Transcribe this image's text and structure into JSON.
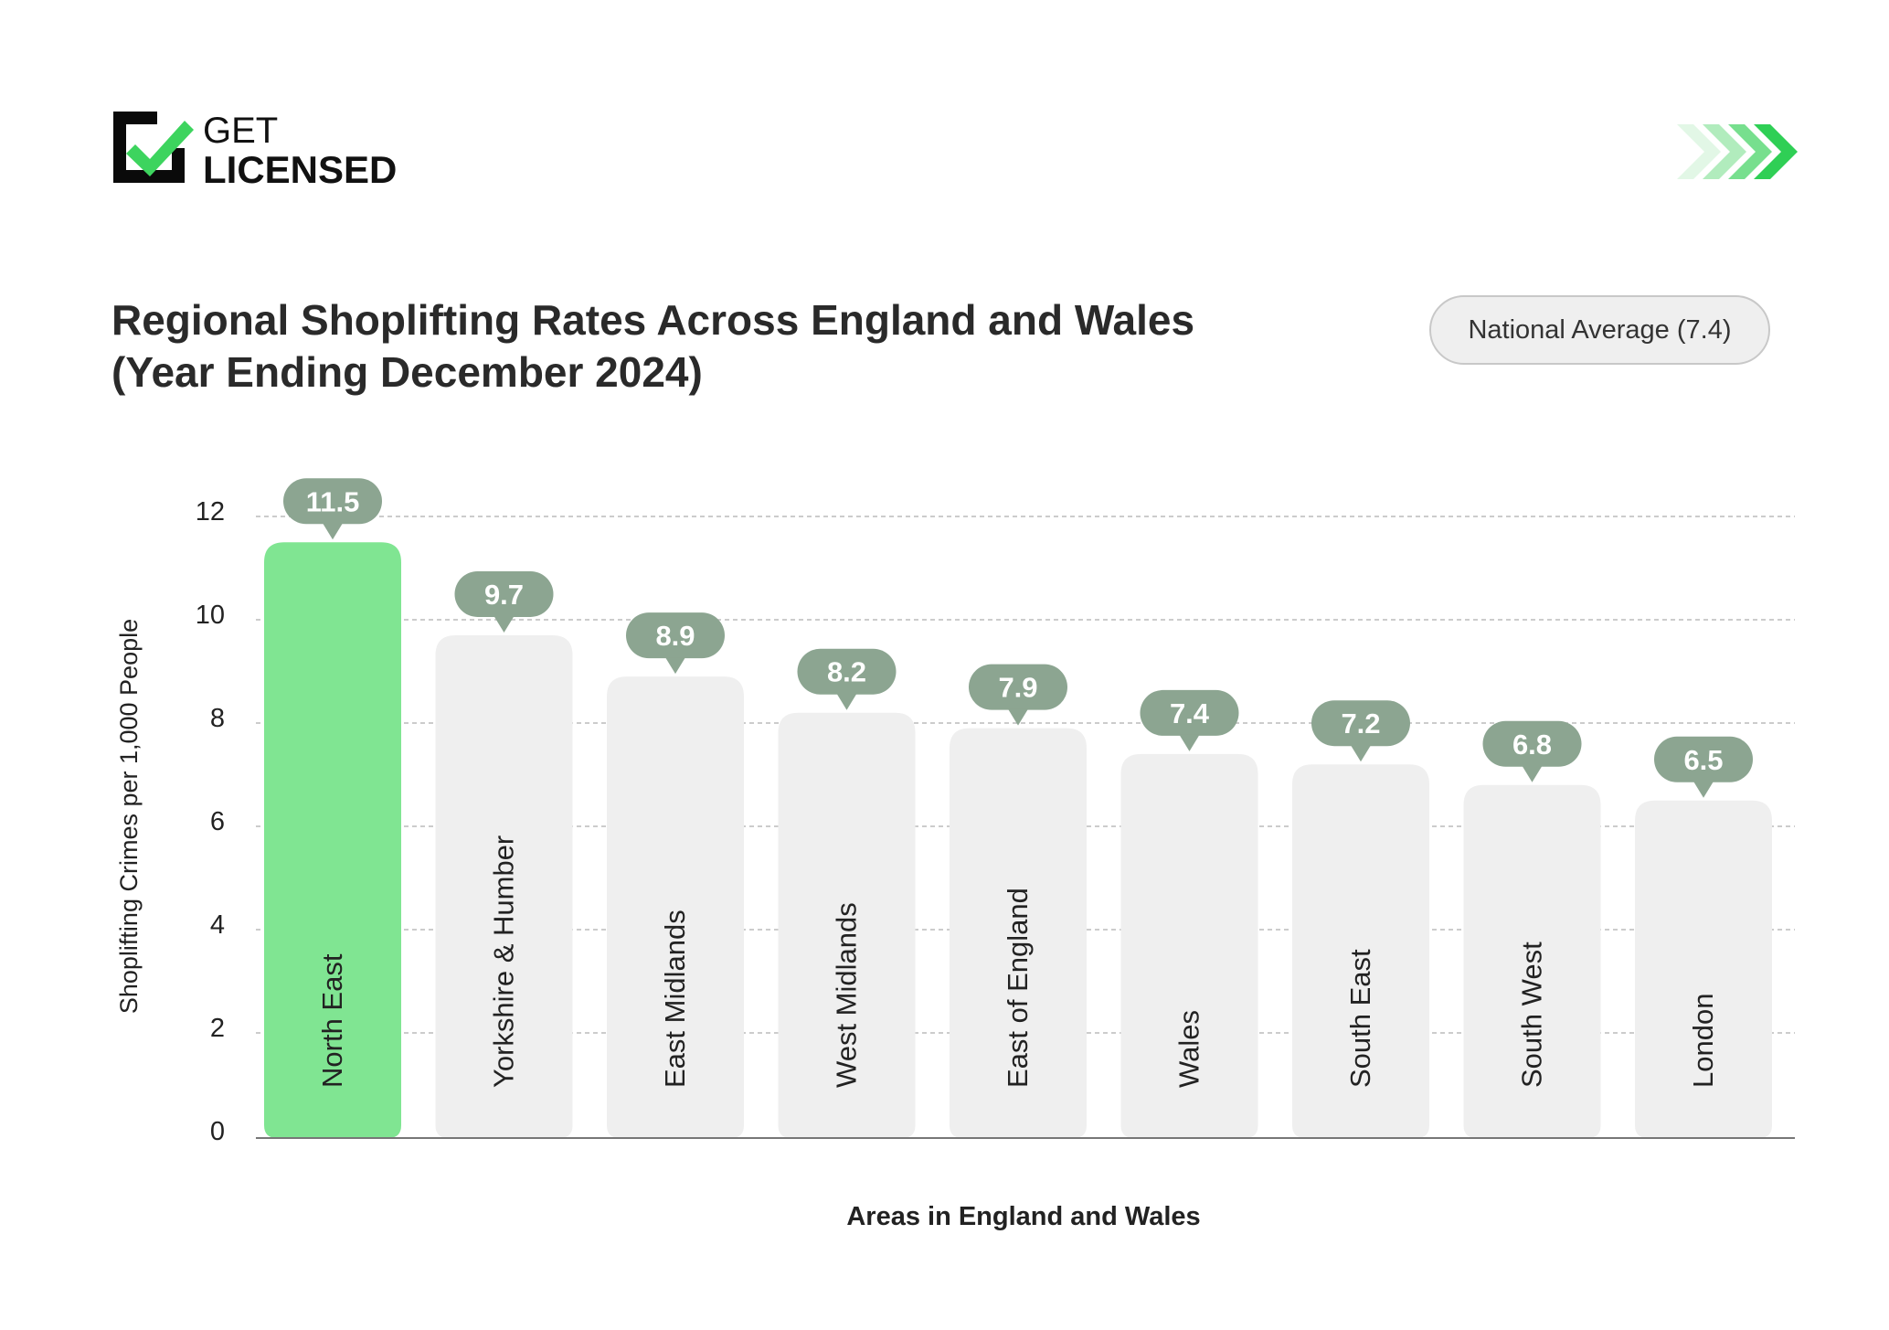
{
  "brand": {
    "logo_top": "GET",
    "logo_bottom": "LICENSED"
  },
  "decor": {
    "chevrons_icon": "triple-chevron-right",
    "colors": [
      "#d8f5dc",
      "#a8ebb4",
      "#6fdd85",
      "#2fcf55"
    ]
  },
  "chart_data": {
    "type": "bar",
    "title_line1": "Regional Shoplifting Rates Across England and Wales",
    "title_line2": "(Year Ending December 2024)",
    "legend": "National Average (7.4)",
    "xlabel": "Areas in England and Wales",
    "ylabel": "Shoplifting Crimes per 1,000 People",
    "ylim": [
      0,
      12
    ],
    "yticks": [
      "0",
      "2",
      "4",
      "6",
      "8",
      "10",
      "12"
    ],
    "grid": true,
    "categories": [
      "North East",
      "Yorkshire & Humber",
      "East Midlands",
      "West Midlands",
      "East of England",
      "Wales",
      "South East",
      "South West",
      "London"
    ],
    "values": [
      11.5,
      9.7,
      8.9,
      8.2,
      7.9,
      7.4,
      7.2,
      6.8,
      6.5
    ],
    "value_labels": [
      "11.5",
      "9.7",
      "8.9",
      "8.2",
      "7.9",
      "7.4",
      "7.2",
      "6.8",
      "6.5"
    ],
    "highlight_index": 0,
    "colors": {
      "highlight": "#80e592",
      "bar": "#efefef",
      "label_pill": "#8ca591"
    }
  }
}
